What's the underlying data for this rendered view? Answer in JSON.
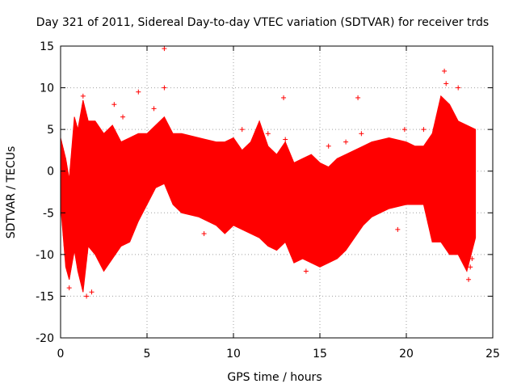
{
  "chart_data": {
    "type": "scatter",
    "title": "Day 321 of 2011, Sidereal Day-to-day VTEC variation (SDTVAR) for receiver trds",
    "xlabel": "GPS time / hours",
    "ylabel": "SDTVAR / TECUs",
    "xlim": [
      0,
      25
    ],
    "ylim": [
      -20,
      15
    ],
    "x_ticks": [
      0,
      5,
      10,
      15,
      20,
      25
    ],
    "y_ticks": [
      -20,
      -15,
      -10,
      -5,
      0,
      5,
      10,
      15
    ],
    "grid": true,
    "marker": "+",
    "series": [
      {
        "name": "SDTVAR",
        "color": "#ff0000",
        "envelope": {
          "x": [
            0.0,
            0.3,
            0.5,
            0.8,
            1.0,
            1.3,
            1.6,
            2.0,
            2.5,
            3.0,
            3.5,
            4.0,
            4.5,
            5.0,
            5.5,
            6.0,
            6.5,
            7.0,
            8.0,
            9.0,
            9.5,
            10.0,
            10.5,
            11.0,
            11.5,
            12.0,
            12.5,
            13.0,
            13.5,
            14.0,
            14.5,
            15.0,
            15.5,
            16.0,
            16.5,
            17.0,
            17.5,
            18.0,
            19.0,
            20.0,
            20.5,
            21.0,
            21.5,
            22.0,
            22.5,
            23.0,
            23.5,
            24.0
          ],
          "upper": [
            4.0,
            1.5,
            -1.0,
            6.5,
            5.0,
            8.5,
            6.0,
            6.0,
            4.5,
            5.5,
            3.5,
            4.0,
            4.5,
            4.5,
            5.5,
            6.5,
            4.5,
            4.5,
            4.0,
            3.5,
            3.5,
            4.0,
            2.5,
            3.5,
            6.0,
            3.0,
            2.0,
            3.5,
            1.0,
            1.5,
            2.0,
            1.0,
            0.5,
            1.5,
            2.0,
            2.5,
            3.0,
            3.5,
            4.0,
            3.5,
            3.0,
            3.0,
            4.5,
            9.0,
            8.0,
            6.0,
            5.5,
            5.0
          ],
          "lower": [
            -4.0,
            -11.5,
            -13.0,
            -9.5,
            -12.0,
            -14.5,
            -9.0,
            -10.0,
            -12.0,
            -10.5,
            -9.0,
            -8.5,
            -6.0,
            -4.0,
            -2.0,
            -1.5,
            -4.0,
            -5.0,
            -5.5,
            -6.5,
            -7.5,
            -6.5,
            -7.0,
            -7.5,
            -8.0,
            -9.0,
            -9.5,
            -8.5,
            -11.0,
            -10.5,
            -11.0,
            -11.5,
            -11.0,
            -10.5,
            -9.5,
            -8.0,
            -6.5,
            -5.5,
            -4.5,
            -4.0,
            -4.0,
            -4.0,
            -8.5,
            -8.5,
            -10.0,
            -10.0,
            -12.0,
            -8.0
          ]
        },
        "points": [
          {
            "x": 0.5,
            "y": -14.0
          },
          {
            "x": 1.5,
            "y": -15.0
          },
          {
            "x": 1.8,
            "y": -14.5
          },
          {
            "x": 1.3,
            "y": 9.0
          },
          {
            "x": 3.1,
            "y": 8.0
          },
          {
            "x": 3.6,
            "y": 6.5
          },
          {
            "x": 4.5,
            "y": 9.5
          },
          {
            "x": 5.4,
            "y": 7.5
          },
          {
            "x": 6.0,
            "y": 14.7
          },
          {
            "x": 6.0,
            "y": 10.0
          },
          {
            "x": 10.5,
            "y": 5.0
          },
          {
            "x": 12.0,
            "y": 4.5
          },
          {
            "x": 12.9,
            "y": 8.8
          },
          {
            "x": 13.0,
            "y": 3.8
          },
          {
            "x": 15.5,
            "y": 3.0
          },
          {
            "x": 16.5,
            "y": 3.5
          },
          {
            "x": 17.2,
            "y": 8.8
          },
          {
            "x": 17.4,
            "y": 4.5
          },
          {
            "x": 19.9,
            "y": 5.0
          },
          {
            "x": 21.0,
            "y": 5.0
          },
          {
            "x": 22.2,
            "y": 12.0
          },
          {
            "x": 22.3,
            "y": 10.5
          },
          {
            "x": 23.0,
            "y": 10.0
          },
          {
            "x": 23.6,
            "y": -13.0
          },
          {
            "x": 23.7,
            "y": -11.5
          },
          {
            "x": 23.8,
            "y": -10.5
          },
          {
            "x": 11.2,
            "y": -7.0
          },
          {
            "x": 8.3,
            "y": -7.5
          },
          {
            "x": 19.5,
            "y": -7.0
          },
          {
            "x": 14.2,
            "y": -12.0
          }
        ]
      }
    ]
  }
}
